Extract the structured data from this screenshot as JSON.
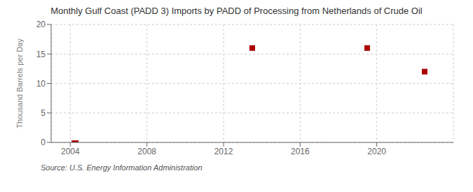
{
  "chart_data": {
    "type": "scatter",
    "title": "Monthly Gulf Coast (PADD 3) Imports by PADD of Processing from Netherlands of Crude Oil",
    "ylabel": "Thousand Barrels per Day",
    "annotations": [
      "Source: U.S. Energy Information Administration"
    ],
    "series": [
      {
        "type": "scatter",
        "marker": "square",
        "color": "#aa0000",
        "x": [
          2013.5,
          2019.5,
          2022.5
        ],
        "values": [
          16.0,
          16.0,
          12.0
        ]
      },
      {
        "type": "bar",
        "color": "#aa0000",
        "x": [
          2004.25
        ],
        "values": [
          0.35
        ]
      }
    ],
    "xlim": [
      2003.0,
      2024.0
    ],
    "xticks": [
      2004,
      2008,
      2012,
      2016,
      2020
    ],
    "ylim": [
      0,
      20
    ],
    "yticks": [
      0,
      5,
      10,
      15,
      20
    ],
    "grid": true
  }
}
